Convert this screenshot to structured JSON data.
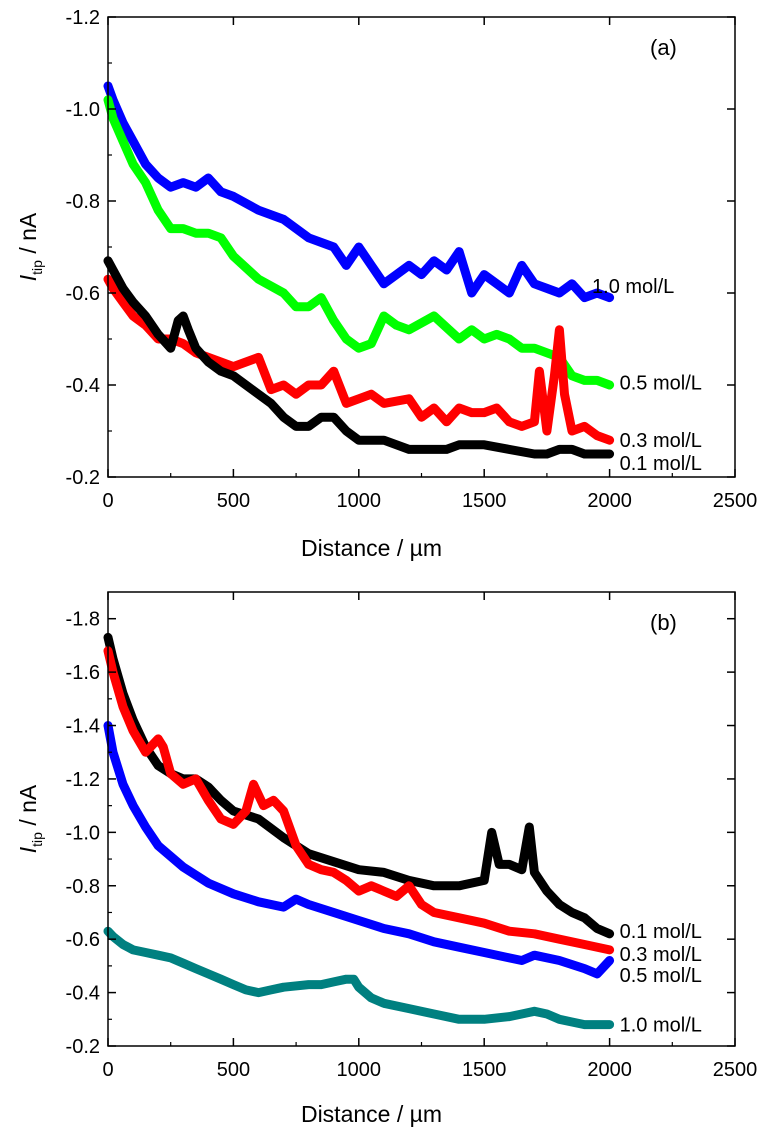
{
  "chart_data": [
    {
      "type": "line",
      "panel_label": "(a)",
      "xlabel": "Distance / µm",
      "ylabel_main": "I",
      "ylabel_sub": "tip",
      "ylabel_unit": " / nA",
      "xlim": [
        0,
        2500
      ],
      "ylim": [
        -0.2,
        -1.2
      ],
      "xticks": [
        0,
        500,
        1000,
        1500,
        2000,
        2500
      ],
      "xtick_labels": [
        "0",
        "500",
        "1000",
        "1500",
        "2000",
        "2500"
      ],
      "yticks": [
        -1.2,
        -1.0,
        -0.8,
        -0.6,
        -0.4,
        -0.2
      ],
      "ytick_labels": [
        "-1.2",
        "-1.0",
        "-0.8",
        "-0.6",
        "-0.4",
        "-0.2"
      ],
      "series": [
        {
          "name": "1.0 mol/L",
          "color": "#0000ff",
          "label_x": 1930,
          "label_y": -0.615,
          "x": [
            0,
            20,
            60,
            100,
            150,
            200,
            250,
            300,
            350,
            400,
            450,
            500,
            600,
            700,
            800,
            900,
            950,
            1000,
            1050,
            1100,
            1150,
            1200,
            1250,
            1300,
            1350,
            1400,
            1450,
            1500,
            1550,
            1600,
            1650,
            1700,
            1750,
            1800,
            1850,
            1900,
            1950,
            2000
          ],
          "y": [
            -1.05,
            -1.02,
            -0.97,
            -0.93,
            -0.88,
            -0.85,
            -0.83,
            -0.84,
            -0.83,
            -0.85,
            -0.82,
            -0.81,
            -0.78,
            -0.76,
            -0.72,
            -0.7,
            -0.66,
            -0.7,
            -0.66,
            -0.62,
            -0.64,
            -0.66,
            -0.64,
            -0.67,
            -0.65,
            -0.69,
            -0.6,
            -0.64,
            -0.62,
            -0.6,
            -0.66,
            -0.62,
            -0.61,
            -0.6,
            -0.62,
            -0.59,
            -0.6,
            -0.59
          ]
        },
        {
          "name": "0.5 mol/L",
          "color": "#00ff00",
          "label_x": 2040,
          "label_y": -0.405,
          "x": [
            0,
            20,
            60,
            100,
            150,
            200,
            250,
            300,
            350,
            400,
            450,
            500,
            600,
            700,
            750,
            800,
            850,
            900,
            950,
            1000,
            1050,
            1100,
            1150,
            1200,
            1300,
            1400,
            1450,
            1500,
            1550,
            1600,
            1650,
            1700,
            1750,
            1800,
            1850,
            1900,
            1950,
            2000
          ],
          "y": [
            -1.02,
            -0.98,
            -0.93,
            -0.88,
            -0.84,
            -0.78,
            -0.74,
            -0.74,
            -0.73,
            -0.73,
            -0.72,
            -0.68,
            -0.63,
            -0.6,
            -0.57,
            -0.57,
            -0.59,
            -0.54,
            -0.5,
            -0.48,
            -0.49,
            -0.55,
            -0.53,
            -0.52,
            -0.55,
            -0.5,
            -0.52,
            -0.5,
            -0.51,
            -0.5,
            -0.48,
            -0.48,
            -0.47,
            -0.46,
            -0.42,
            -0.41,
            -0.41,
            -0.4
          ]
        },
        {
          "name": "0.3 mol/L",
          "color": "#ff0000",
          "label_x": 2040,
          "label_y": -0.28,
          "x": [
            0,
            20,
            60,
            100,
            150,
            200,
            250,
            300,
            350,
            400,
            500,
            600,
            650,
            700,
            750,
            800,
            850,
            900,
            950,
            1000,
            1050,
            1100,
            1200,
            1250,
            1300,
            1350,
            1400,
            1450,
            1500,
            1550,
            1600,
            1650,
            1700,
            1720,
            1750,
            1780,
            1800,
            1820,
            1850,
            1900,
            1950,
            2000
          ],
          "y": [
            -0.63,
            -0.61,
            -0.58,
            -0.55,
            -0.53,
            -0.5,
            -0.5,
            -0.49,
            -0.47,
            -0.46,
            -0.44,
            -0.46,
            -0.39,
            -0.4,
            -0.38,
            -0.4,
            -0.4,
            -0.43,
            -0.36,
            -0.37,
            -0.38,
            -0.36,
            -0.37,
            -0.33,
            -0.35,
            -0.32,
            -0.35,
            -0.34,
            -0.34,
            -0.35,
            -0.32,
            -0.31,
            -0.32,
            -0.43,
            -0.3,
            -0.42,
            -0.52,
            -0.38,
            -0.3,
            -0.31,
            -0.29,
            -0.28
          ]
        },
        {
          "name": "0.1 mol/L",
          "color": "#000000",
          "label_x": 2040,
          "label_y": -0.23,
          "x": [
            0,
            20,
            60,
            100,
            150,
            200,
            250,
            280,
            300,
            320,
            350,
            400,
            450,
            500,
            550,
            600,
            650,
            700,
            750,
            800,
            850,
            900,
            950,
            1000,
            1100,
            1200,
            1300,
            1350,
            1400,
            1500,
            1600,
            1700,
            1750,
            1800,
            1850,
            1900,
            1950,
            2000
          ],
          "y": [
            -0.67,
            -0.65,
            -0.61,
            -0.58,
            -0.55,
            -0.51,
            -0.48,
            -0.54,
            -0.55,
            -0.52,
            -0.48,
            -0.45,
            -0.43,
            -0.42,
            -0.4,
            -0.38,
            -0.36,
            -0.33,
            -0.31,
            -0.31,
            -0.33,
            -0.33,
            -0.3,
            -0.28,
            -0.28,
            -0.26,
            -0.26,
            -0.26,
            -0.27,
            -0.27,
            -0.26,
            -0.25,
            -0.25,
            -0.26,
            -0.26,
            -0.25,
            -0.25,
            -0.25
          ]
        }
      ]
    },
    {
      "type": "line",
      "panel_label": "(b)",
      "xlabel": "Distance / µm",
      "ylabel_main": "I",
      "ylabel_sub": "tip",
      "ylabel_unit": " / nA",
      "xlim": [
        0,
        2500
      ],
      "ylim": [
        -0.2,
        -1.9
      ],
      "xticks": [
        0,
        500,
        1000,
        1500,
        2000,
        2500
      ],
      "xtick_labels": [
        "0",
        "500",
        "1000",
        "1500",
        "2000",
        "2500"
      ],
      "yticks": [
        -1.8,
        -1.6,
        -1.4,
        -1.2,
        -1.0,
        -0.8,
        -0.6,
        -0.4,
        -0.2
      ],
      "ytick_labels": [
        "-1.8",
        "-1.6",
        "-1.4",
        "-1.2",
        "-1.0",
        "-0.8",
        "-0.6",
        "-0.4",
        "-0.2"
      ],
      "series": [
        {
          "name": "0.1 mol/L",
          "color": "#000000",
          "label_x": 2040,
          "label_y": -0.63,
          "x": [
            0,
            20,
            60,
            100,
            150,
            200,
            250,
            300,
            350,
            400,
            450,
            500,
            600,
            700,
            800,
            900,
            1000,
            1100,
            1200,
            1300,
            1400,
            1500,
            1530,
            1560,
            1600,
            1650,
            1680,
            1700,
            1750,
            1800,
            1850,
            1900,
            1950,
            2000
          ],
          "y": [
            -1.73,
            -1.65,
            -1.52,
            -1.42,
            -1.32,
            -1.25,
            -1.22,
            -1.2,
            -1.2,
            -1.17,
            -1.12,
            -1.08,
            -1.05,
            -0.98,
            -0.92,
            -0.89,
            -0.86,
            -0.85,
            -0.82,
            -0.8,
            -0.8,
            -0.82,
            -1.0,
            -0.88,
            -0.88,
            -0.86,
            -1.02,
            -0.85,
            -0.78,
            -0.73,
            -0.7,
            -0.68,
            -0.64,
            -0.62
          ]
        },
        {
          "name": "0.3 mol/L",
          "color": "#ff0000",
          "label_x": 2040,
          "label_y": -0.545,
          "x": [
            0,
            20,
            60,
            100,
            150,
            200,
            220,
            250,
            300,
            350,
            400,
            450,
            500,
            550,
            580,
            620,
            660,
            700,
            750,
            800,
            850,
            900,
            950,
            1000,
            1050,
            1100,
            1150,
            1200,
            1250,
            1300,
            1400,
            1500,
            1600,
            1700,
            1800,
            1900,
            2000
          ],
          "y": [
            -1.68,
            -1.6,
            -1.47,
            -1.38,
            -1.3,
            -1.35,
            -1.32,
            -1.22,
            -1.18,
            -1.2,
            -1.12,
            -1.05,
            -1.03,
            -1.08,
            -1.18,
            -1.1,
            -1.12,
            -1.08,
            -0.95,
            -0.88,
            -0.86,
            -0.85,
            -0.82,
            -0.78,
            -0.8,
            -0.78,
            -0.76,
            -0.8,
            -0.73,
            -0.7,
            -0.68,
            -0.66,
            -0.63,
            -0.62,
            -0.6,
            -0.58,
            -0.56
          ]
        },
        {
          "name": "0.5 mol/L",
          "color": "#0000ff",
          "label_x": 2040,
          "label_y": -0.465,
          "x": [
            0,
            20,
            60,
            100,
            150,
            200,
            300,
            400,
            500,
            600,
            700,
            750,
            800,
            900,
            1000,
            1100,
            1200,
            1300,
            1400,
            1500,
            1600,
            1650,
            1700,
            1800,
            1900,
            1950,
            2000
          ],
          "y": [
            -1.4,
            -1.3,
            -1.18,
            -1.1,
            -1.02,
            -0.95,
            -0.87,
            -0.81,
            -0.77,
            -0.74,
            -0.72,
            -0.75,
            -0.73,
            -0.7,
            -0.67,
            -0.64,
            -0.62,
            -0.59,
            -0.57,
            -0.55,
            -0.53,
            -0.52,
            -0.54,
            -0.52,
            -0.49,
            -0.47,
            -0.52
          ]
        },
        {
          "name": "1.0 mol/L",
          "color": "#008080",
          "label_x": 2040,
          "label_y": -0.28,
          "x": [
            0,
            20,
            60,
            100,
            150,
            200,
            250,
            300,
            350,
            400,
            450,
            500,
            550,
            600,
            650,
            700,
            800,
            850,
            900,
            950,
            980,
            1000,
            1050,
            1100,
            1200,
            1300,
            1400,
            1500,
            1600,
            1650,
            1700,
            1750,
            1800,
            1850,
            1900,
            1950,
            2000
          ],
          "y": [
            -0.63,
            -0.61,
            -0.58,
            -0.56,
            -0.55,
            -0.54,
            -0.53,
            -0.51,
            -0.49,
            -0.47,
            -0.45,
            -0.43,
            -0.41,
            -0.4,
            -0.41,
            -0.42,
            -0.43,
            -0.43,
            -0.44,
            -0.45,
            -0.45,
            -0.42,
            -0.38,
            -0.36,
            -0.34,
            -0.32,
            -0.3,
            -0.3,
            -0.31,
            -0.32,
            -0.33,
            -0.32,
            -0.3,
            -0.29,
            -0.28,
            -0.28,
            -0.28
          ]
        }
      ]
    }
  ]
}
